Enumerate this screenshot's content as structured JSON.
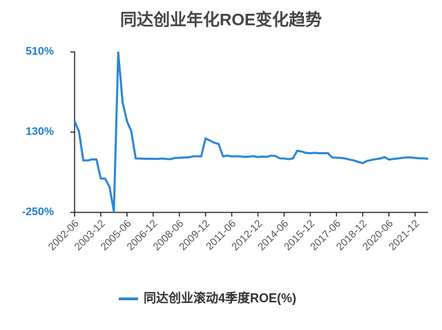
{
  "chart_data": {
    "type": "line",
    "title": "同达创业年化ROE变化趋势",
    "categories": [
      "2002-06",
      null,
      null,
      null,
      null,
      null,
      "2003-12",
      null,
      null,
      null,
      null,
      null,
      "2005-06",
      null,
      null,
      null,
      null,
      null,
      "2006-12",
      null,
      null,
      null,
      null,
      null,
      "2008-06",
      null,
      null,
      null,
      null,
      null,
      "2009-12",
      null,
      null,
      null,
      null,
      null,
      "2011-06",
      null,
      null,
      null,
      null,
      null,
      "2012-12",
      null,
      null,
      null,
      null,
      null,
      "2014-06",
      null,
      null,
      null,
      null,
      null,
      "2015-12",
      null,
      null,
      null,
      null,
      null,
      "2017-06",
      null,
      null,
      null,
      null,
      null,
      "2018-12",
      null,
      null,
      null,
      null,
      null,
      "2020-06",
      null,
      null,
      null,
      null,
      null,
      "2021-12",
      null,
      null,
      null
    ],
    "series": [
      {
        "name": "同达创业滚动4季度ROE(%)",
        "color": "#2b86d8",
        "values": [
          182,
          133,
          -4,
          -4,
          1,
          1,
          -90,
          -90,
          -129,
          -245,
          507,
          271,
          182,
          133,
          5,
          5,
          4,
          4,
          4,
          3,
          5,
          3,
          2,
          8,
          8,
          10,
          10,
          15,
          16,
          15,
          100,
          90,
          80,
          74,
          15,
          19,
          15,
          16,
          15,
          13,
          14,
          16,
          12,
          14,
          13,
          19,
          17,
          6,
          5,
          2,
          5,
          42,
          38,
          32,
          30,
          32,
          30,
          30,
          31,
          10,
          9,
          8,
          5,
          0,
          -4,
          -11,
          -17,
          -6,
          -2,
          2,
          5,
          12,
          0,
          3,
          5,
          8,
          10,
          10,
          8,
          6,
          6,
          4
        ]
      }
    ],
    "ylim": [
      -250,
      510
    ],
    "yticks": [
      {
        "value": -250,
        "label": "-250%"
      },
      {
        "value": 130,
        "label": "130%"
      },
      {
        "value": 510,
        "label": "510%"
      }
    ],
    "legend": "bottom"
  }
}
